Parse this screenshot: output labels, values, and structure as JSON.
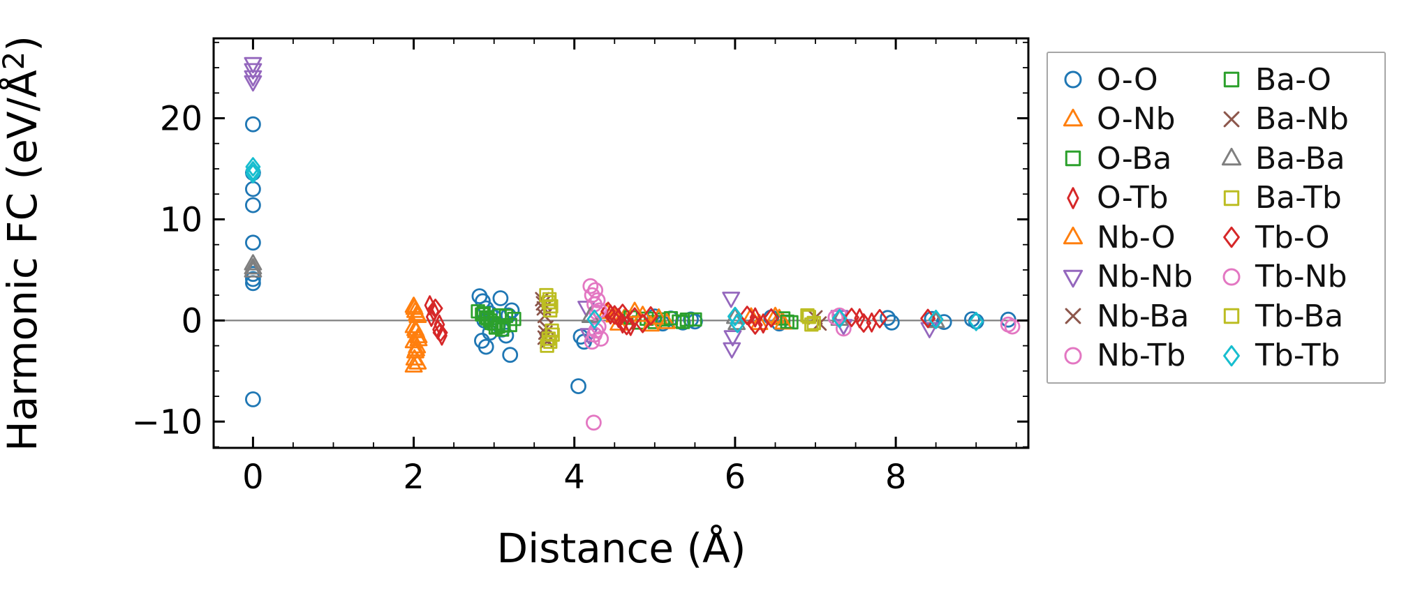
{
  "figure": {
    "xlabel": "Distance (Å)",
    "ylabel": "Harmonic FC (eV/Å²)",
    "ylabel_pre": "Harmonic FC (eV/Å",
    "ylabel_sup": "2",
    "ylabel_post": ")"
  },
  "chart_data": {
    "type": "scatter",
    "title": "",
    "xlabel": "Distance (Å)",
    "ylabel": "Harmonic FC (eV/Å²)",
    "xlim": [
      -0.49,
      9.65
    ],
    "ylim": [
      -12.6,
      27.9
    ],
    "xticks": [
      0,
      2,
      4,
      6,
      8
    ],
    "yticks": [
      -10,
      0,
      10,
      20
    ],
    "x_minor_step": 0.5,
    "y_minor_step": 2.5,
    "grid": false,
    "zero_line": {
      "y": 0,
      "color": "#808080"
    },
    "legend_position": "outside-right",
    "legend_columns": 2,
    "axis_color": "#000000",
    "series": [
      {
        "name": "O-O",
        "marker": "circle",
        "color": "#1f77b4",
        "points": [
          [
            0,
            19.4
          ],
          [
            0,
            14.6
          ],
          [
            0,
            13.0
          ],
          [
            0,
            11.4
          ],
          [
            0,
            7.7
          ],
          [
            0,
            4.6
          ],
          [
            0,
            4.1
          ],
          [
            0,
            3.7
          ],
          [
            0,
            -7.8
          ],
          [
            2.82,
            2.4
          ],
          [
            2.86,
            1.9
          ],
          [
            2.9,
            1.2
          ],
          [
            2.95,
            0.7
          ],
          [
            3.0,
            0.3
          ],
          [
            3.05,
            -0.4
          ],
          [
            3.1,
            -0.9
          ],
          [
            3.15,
            -1.5
          ],
          [
            2.85,
            -2.0
          ],
          [
            2.9,
            -2.6
          ],
          [
            3.2,
            -3.4
          ],
          [
            2.88,
            0.0
          ],
          [
            3.18,
            0.5
          ],
          [
            3.22,
            1.0
          ],
          [
            3.08,
            2.2
          ],
          [
            2.95,
            -1.2
          ],
          [
            4.05,
            -6.5
          ],
          [
            4.08,
            -1.6
          ],
          [
            4.12,
            -2.1
          ],
          [
            5.0,
            0.4
          ],
          [
            5.1,
            -0.3
          ],
          [
            5.2,
            0.2
          ],
          [
            5.35,
            -0.2
          ],
          [
            5.45,
            0.1
          ],
          [
            5.5,
            -0.1
          ],
          [
            6.45,
            0.3
          ],
          [
            6.55,
            -0.3
          ],
          [
            7.9,
            0.25
          ],
          [
            7.95,
            -0.2
          ],
          [
            8.45,
            0.15
          ],
          [
            8.6,
            -0.15
          ],
          [
            8.95,
            0.12
          ],
          [
            9.0,
            -0.1
          ],
          [
            9.4,
            0.08
          ]
        ]
      },
      {
        "name": "O-Nb",
        "marker": "triangle-up",
        "color": "#ff7f0e",
        "points": [
          [
            2.0,
            1.4
          ],
          [
            2.02,
            0.9
          ],
          [
            2.05,
            0.4
          ],
          [
            2.0,
            -0.6
          ],
          [
            2.03,
            -1.1
          ],
          [
            2.06,
            -1.6
          ],
          [
            2.0,
            -2.1
          ],
          [
            2.04,
            -2.6
          ],
          [
            2.02,
            -3.1
          ],
          [
            2.05,
            -4.2
          ],
          [
            2.0,
            -4.5
          ],
          [
            4.4,
            0.8
          ],
          [
            4.5,
            0.45
          ],
          [
            4.55,
            -0.35
          ],
          [
            4.62,
            0.2
          ],
          [
            6.2,
            0.35
          ],
          [
            6.3,
            -0.3
          ],
          [
            6.55,
            0.2
          ]
        ]
      },
      {
        "name": "O-Ba",
        "marker": "square",
        "color": "#2ca02c",
        "points": [
          [
            2.8,
            0.9
          ],
          [
            2.85,
            0.6
          ],
          [
            2.9,
            0.3
          ],
          [
            2.95,
            0.0
          ],
          [
            3.0,
            -0.3
          ],
          [
            3.05,
            -0.6
          ],
          [
            3.1,
            -0.9
          ],
          [
            3.15,
            0.45
          ],
          [
            3.2,
            -0.45
          ],
          [
            3.25,
            0.15
          ],
          [
            4.7,
            0.3
          ],
          [
            4.8,
            -0.2
          ],
          [
            4.9,
            0.18
          ],
          [
            5.0,
            -0.15
          ],
          [
            5.1,
            0.1
          ],
          [
            5.3,
            -0.1
          ],
          [
            5.4,
            0.08
          ],
          [
            6.6,
            0.2
          ],
          [
            6.7,
            -0.18
          ]
        ]
      },
      {
        "name": "O-Tb",
        "marker": "thin-diamond",
        "color": "#d62728",
        "points": [
          [
            2.2,
            1.5
          ],
          [
            2.25,
            0.9
          ],
          [
            2.3,
            -0.9
          ],
          [
            2.35,
            -1.5
          ],
          [
            2.22,
            0.35
          ],
          [
            2.32,
            -0.4
          ],
          [
            4.45,
            0.6
          ],
          [
            4.55,
            0.25
          ],
          [
            4.6,
            -0.3
          ],
          [
            4.7,
            -0.55
          ],
          [
            6.25,
            0.3
          ],
          [
            6.35,
            -0.3
          ],
          [
            7.55,
            0.22
          ],
          [
            7.7,
            -0.2
          ]
        ]
      },
      {
        "name": "Nb-O",
        "marker": "triangle-up",
        "color": "#ff7f0e",
        "points": [
          [
            2.01,
            1.2
          ],
          [
            2.04,
            0.6
          ],
          [
            2.02,
            -0.9
          ],
          [
            2.06,
            -1.9
          ],
          [
            2.03,
            -2.9
          ],
          [
            2.01,
            -3.8
          ],
          [
            4.75,
            0.9
          ],
          [
            4.85,
            0.5
          ],
          [
            4.95,
            -0.45
          ],
          [
            5.05,
            0.25
          ],
          [
            5.15,
            -0.2
          ],
          [
            6.5,
            0.4
          ],
          [
            6.6,
            -0.25
          ]
        ]
      },
      {
        "name": "Nb-Nb",
        "marker": "triangle-down",
        "color": "#9467bd",
        "points": [
          [
            0,
            25.4
          ],
          [
            0,
            24.8
          ],
          [
            0,
            24.1
          ],
          [
            0,
            23.6
          ],
          [
            4.15,
            1.3
          ],
          [
            4.18,
            -1.4
          ],
          [
            5.95,
            2.2
          ],
          [
            5.97,
            -1.6
          ],
          [
            5.96,
            -2.8
          ],
          [
            7.3,
            0.4
          ],
          [
            7.35,
            -0.5
          ],
          [
            8.42,
            -0.8
          ]
        ]
      },
      {
        "name": "Nb-Ba",
        "marker": "x",
        "color": "#8c564b",
        "points": [
          [
            3.6,
            2.1
          ],
          [
            3.62,
            1.2
          ],
          [
            3.64,
            -1.2
          ],
          [
            3.66,
            -2.1
          ],
          [
            3.63,
            0.45
          ],
          [
            7.0,
            0.3
          ]
        ]
      },
      {
        "name": "Nb-Tb",
        "marker": "circle",
        "color": "#e377c2",
        "points": [
          [
            4.2,
            3.4
          ],
          [
            4.22,
            2.5
          ],
          [
            4.25,
            1.6
          ],
          [
            4.28,
            0.8
          ],
          [
            4.3,
            -0.6
          ],
          [
            4.25,
            -1.4
          ],
          [
            4.22,
            -2.1
          ],
          [
            4.24,
            -10.1
          ],
          [
            7.3,
            0.5
          ],
          [
            7.35,
            -0.8
          ],
          [
            9.4,
            -0.4
          ]
        ]
      },
      {
        "name": "Ba-O",
        "marker": "square",
        "color": "#2ca02c",
        "points": [
          [
            2.87,
            0.7
          ],
          [
            2.92,
            0.2
          ],
          [
            2.97,
            -0.25
          ],
          [
            3.02,
            -0.7
          ],
          [
            3.07,
            0.5
          ],
          [
            3.12,
            -0.5
          ],
          [
            5.2,
            0.22
          ],
          [
            5.35,
            -0.15
          ],
          [
            5.5,
            0.1
          ],
          [
            6.65,
            -0.12
          ]
        ]
      },
      {
        "name": "Ba-Nb",
        "marker": "x",
        "color": "#8c564b",
        "points": [
          [
            3.61,
            1.7
          ],
          [
            3.65,
            -0.7
          ],
          [
            3.63,
            -1.7
          ],
          [
            7.05,
            -0.3
          ]
        ]
      },
      {
        "name": "Ba-Ba",
        "marker": "triangle-up",
        "color": "#7f7f7f",
        "points": [
          [
            0,
            5.6
          ],
          [
            0,
            5.2
          ],
          [
            0,
            4.9
          ],
          [
            4.2,
            0.4
          ],
          [
            6.0,
            0.3
          ],
          [
            6.02,
            -0.3
          ],
          [
            7.3,
            0.12
          ],
          [
            8.5,
            -0.1
          ]
        ]
      },
      {
        "name": "Ba-Tb",
        "marker": "square",
        "color": "#bcbd22",
        "points": [
          [
            3.65,
            2.5
          ],
          [
            3.68,
            1.8
          ],
          [
            3.7,
            1.0
          ],
          [
            3.72,
            -1.0
          ],
          [
            3.68,
            -1.8
          ],
          [
            3.66,
            -2.5
          ],
          [
            6.9,
            0.5
          ],
          [
            6.95,
            -0.4
          ]
        ]
      },
      {
        "name": "Tb-O",
        "marker": "diamond",
        "color": "#d62728",
        "points": [
          [
            2.27,
            1.2
          ],
          [
            2.33,
            -1.2
          ],
          [
            4.42,
            0.9
          ],
          [
            4.5,
            0.55
          ],
          [
            4.6,
            0.7
          ],
          [
            4.65,
            -0.5
          ],
          [
            4.75,
            0.35
          ],
          [
            4.85,
            -0.3
          ],
          [
            4.95,
            0.45
          ],
          [
            6.15,
            0.5
          ],
          [
            6.25,
            -0.45
          ],
          [
            6.45,
            0.25
          ],
          [
            7.45,
            0.3
          ],
          [
            7.6,
            -0.25
          ],
          [
            7.8,
            0.18
          ],
          [
            8.4,
            0.2
          ]
        ]
      },
      {
        "name": "Tb-Nb",
        "marker": "circle",
        "color": "#e377c2",
        "points": [
          [
            4.26,
            3.0
          ],
          [
            4.29,
            2.0
          ],
          [
            4.31,
            1.0
          ],
          [
            4.27,
            -1.0
          ],
          [
            4.33,
            -1.8
          ],
          [
            7.25,
            0.3
          ],
          [
            9.45,
            -0.6
          ]
        ]
      },
      {
        "name": "Tb-Ba",
        "marker": "square",
        "color": "#bcbd22",
        "points": [
          [
            3.69,
            2.1
          ],
          [
            3.71,
            1.4
          ],
          [
            3.73,
            -1.4
          ],
          [
            3.7,
            -2.1
          ],
          [
            6.92,
            0.35
          ],
          [
            6.98,
            -0.25
          ]
        ]
      },
      {
        "name": "Tb-Tb",
        "marker": "diamond",
        "color": "#17becf",
        "points": [
          [
            0,
            15.2
          ],
          [
            0,
            14.8
          ],
          [
            0,
            14.5
          ],
          [
            4.25,
            0.12
          ],
          [
            6.0,
            0.4
          ],
          [
            6.03,
            -0.3
          ],
          [
            7.3,
            0.2
          ],
          [
            8.5,
            0.1
          ],
          [
            9.0,
            -0.1
          ]
        ]
      }
    ]
  }
}
